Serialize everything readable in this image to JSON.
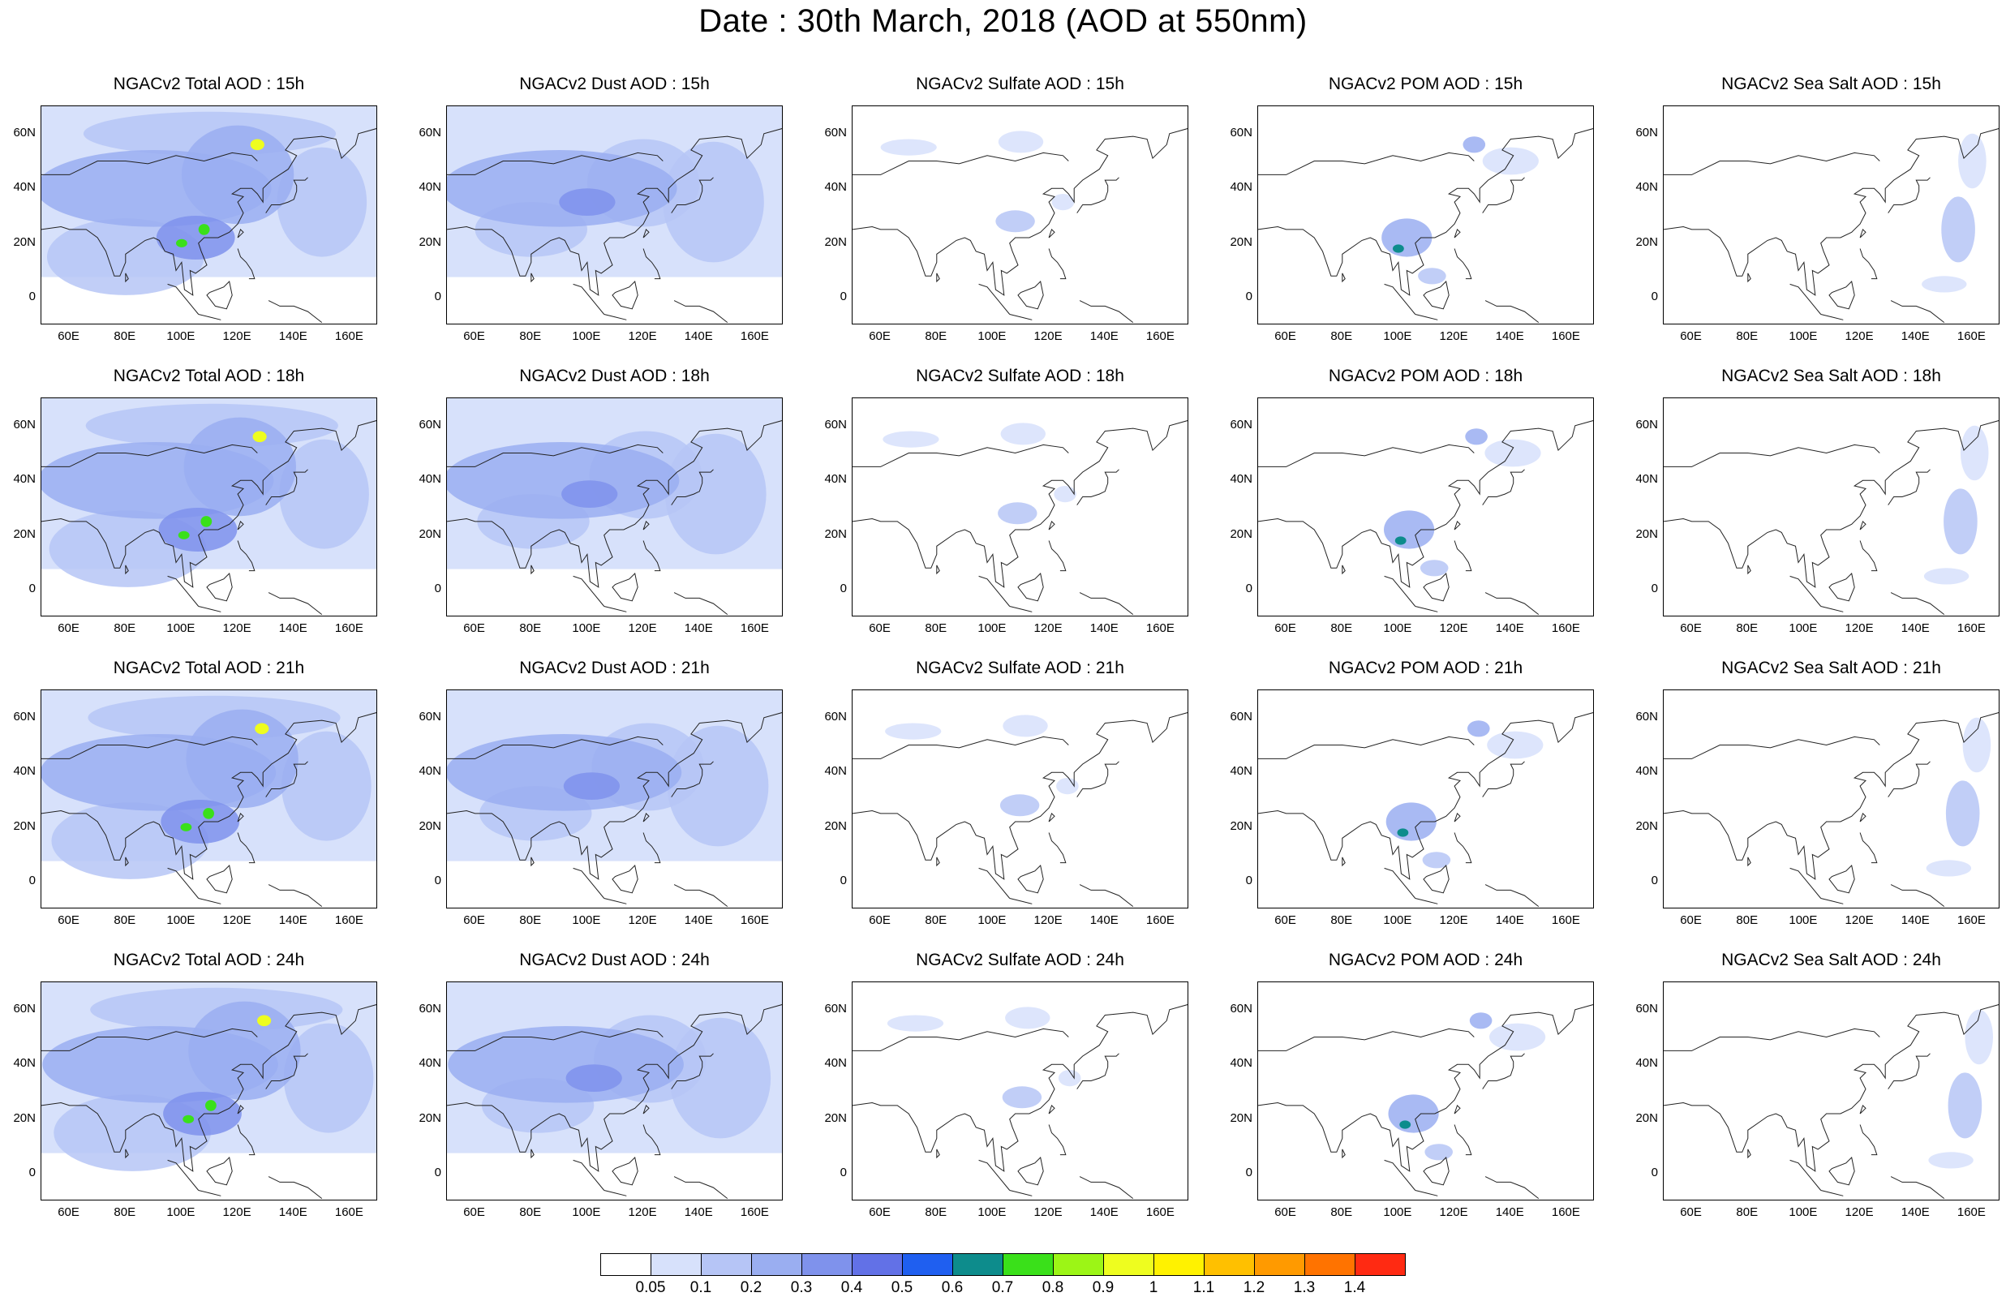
{
  "title": "Date : 30th March, 2018 (AOD at 550nm)",
  "panels": [
    {
      "title": "NGACv2 Total AOD : 15h",
      "species": "total",
      "hour": 15
    },
    {
      "title": "NGACv2 Dust AOD : 15h",
      "species": "dust",
      "hour": 15
    },
    {
      "title": "NGACv2 Sulfate AOD : 15h",
      "species": "sulfate",
      "hour": 15
    },
    {
      "title": "NGACv2 POM AOD : 15h",
      "species": "pom",
      "hour": 15
    },
    {
      "title": "NGACv2 Sea Salt AOD : 15h",
      "species": "seasalt",
      "hour": 15
    },
    {
      "title": "NGACv2 Total AOD : 18h",
      "species": "total",
      "hour": 18
    },
    {
      "title": "NGACv2 Dust AOD : 18h",
      "species": "dust",
      "hour": 18
    },
    {
      "title": "NGACv2 Sulfate AOD : 18h",
      "species": "sulfate",
      "hour": 18
    },
    {
      "title": "NGACv2 POM AOD : 18h",
      "species": "pom",
      "hour": 18
    },
    {
      "title": "NGACv2 Sea Salt AOD : 18h",
      "species": "seasalt",
      "hour": 18
    },
    {
      "title": "NGACv2 Total AOD : 21h",
      "species": "total",
      "hour": 21
    },
    {
      "title": "NGACv2 Dust AOD : 21h",
      "species": "dust",
      "hour": 21
    },
    {
      "title": "NGACv2 Sulfate AOD : 21h",
      "species": "sulfate",
      "hour": 21
    },
    {
      "title": "NGACv2 POM AOD : 21h",
      "species": "pom",
      "hour": 21
    },
    {
      "title": "NGACv2 Sea Salt AOD : 21h",
      "species": "seasalt",
      "hour": 21
    },
    {
      "title": "NGACv2 Total AOD : 24h",
      "species": "total",
      "hour": 24
    },
    {
      "title": "NGACv2 Dust AOD : 24h",
      "species": "dust",
      "hour": 24
    },
    {
      "title": "NGACv2 Sulfate AOD : 24h",
      "species": "sulfate",
      "hour": 24
    },
    {
      "title": "NGACv2 POM AOD : 24h",
      "species": "pom",
      "hour": 24
    },
    {
      "title": "NGACv2 Sea Salt  AOD : 24h",
      "species": "seasalt",
      "hour": 24
    }
  ],
  "lat_ticks": [
    "60N",
    "40N",
    "20N",
    "0"
  ],
  "lon_ticks": [
    "60E",
    "80E",
    "100E",
    "120E",
    "140E",
    "160E"
  ],
  "map_extent": {
    "lon_min": 50,
    "lon_max": 170,
    "lat_min": -10,
    "lat_max": 70
  },
  "colorbar": {
    "labels": [
      "0.05",
      "0.1",
      "0.2",
      "0.3",
      "0.4",
      "0.5",
      "0.6",
      "0.7",
      "0.8",
      "0.9",
      "1",
      "1.1",
      "1.2",
      "1.3",
      "1.4"
    ],
    "colors": [
      "#ffffff",
      "#d7e1fb",
      "#b6c5f6",
      "#9aaef1",
      "#7f92ec",
      "#6271e7",
      "#1f5ff0",
      "#0d8c8c",
      "#3ae01a",
      "#9cf516",
      "#eefd1f",
      "#fff200",
      "#ffc000",
      "#ff9a00",
      "#ff7300",
      "#ff2a12"
    ]
  },
  "plumes": {
    "total": [
      {
        "lon": 90,
        "lat": 40,
        "rx": 42,
        "ry": 14,
        "level": 3
      },
      {
        "lon": 120,
        "lat": 45,
        "rx": 20,
        "ry": 18,
        "level": 3
      },
      {
        "lon": 105,
        "lat": 22,
        "rx": 14,
        "ry": 8,
        "level": 4
      },
      {
        "lon": 150,
        "lat": 35,
        "rx": 16,
        "ry": 20,
        "level": 2
      },
      {
        "lon": 80,
        "lat": 15,
        "rx": 28,
        "ry": 14,
        "level": 2
      },
      {
        "lon": 110,
        "lat": 60,
        "rx": 45,
        "ry": 8,
        "level": 2
      },
      {
        "lon": 127,
        "lat": 56,
        "rx": 2.5,
        "ry": 2,
        "level": 10
      },
      {
        "lon": 100,
        "lat": 20,
        "rx": 2,
        "ry": 1.5,
        "level": 8
      },
      {
        "lon": 108,
        "lat": 25,
        "rx": 2,
        "ry": 2,
        "level": 8
      }
    ],
    "dust": [
      {
        "lon": 90,
        "lat": 40,
        "rx": 42,
        "ry": 14,
        "level": 3
      },
      {
        "lon": 120,
        "lat": 42,
        "rx": 20,
        "ry": 16,
        "level": 2
      },
      {
        "lon": 80,
        "lat": 25,
        "rx": 20,
        "ry": 10,
        "level": 2
      },
      {
        "lon": 145,
        "lat": 35,
        "rx": 18,
        "ry": 22,
        "level": 2
      },
      {
        "lon": 100,
        "lat": 35,
        "rx": 10,
        "ry": 5,
        "level": 4
      }
    ],
    "sulfate": [
      {
        "lon": 70,
        "lat": 55,
        "rx": 10,
        "ry": 3,
        "level": 1
      },
      {
        "lon": 110,
        "lat": 57,
        "rx": 8,
        "ry": 4,
        "level": 1
      },
      {
        "lon": 108,
        "lat": 28,
        "rx": 7,
        "ry": 4,
        "level": 2
      },
      {
        "lon": 125,
        "lat": 35,
        "rx": 4,
        "ry": 3,
        "level": 1
      }
    ],
    "pom": [
      {
        "lon": 127,
        "lat": 56,
        "rx": 4,
        "ry": 3,
        "level": 3
      },
      {
        "lon": 103,
        "lat": 22,
        "rx": 9,
        "ry": 7,
        "level": 3
      },
      {
        "lon": 100,
        "lat": 18,
        "rx": 2,
        "ry": 1.5,
        "level": 7
      },
      {
        "lon": 112,
        "lat": 8,
        "rx": 5,
        "ry": 3,
        "level": 2
      },
      {
        "lon": 140,
        "lat": 50,
        "rx": 10,
        "ry": 5,
        "level": 1
      }
    ],
    "seasalt": [
      {
        "lon": 155,
        "lat": 25,
        "rx": 6,
        "ry": 12,
        "level": 2
      },
      {
        "lon": 160,
        "lat": 50,
        "rx": 5,
        "ry": 10,
        "level": 1
      },
      {
        "lon": 150,
        "lat": 5,
        "rx": 8,
        "ry": 3,
        "level": 1
      }
    ]
  }
}
